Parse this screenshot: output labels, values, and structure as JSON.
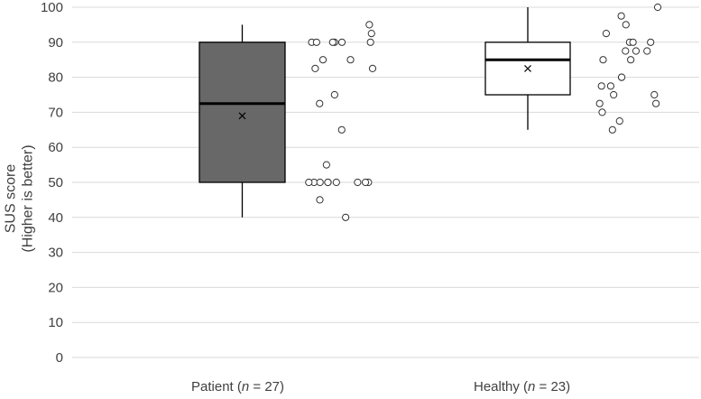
{
  "chart_data": {
    "type": "box",
    "ylabel": [
      "SUS score",
      "(Higher is better)"
    ],
    "ylim": [
      0,
      100
    ],
    "yticks": [
      0,
      10,
      20,
      30,
      40,
      50,
      60,
      70,
      80,
      90,
      100
    ],
    "grid": true,
    "groups": [
      {
        "name": "Patient",
        "n": 27,
        "label_prefix": "Patient (",
        "label_n": "n",
        "label_suffix": " = 27)",
        "fill": "#686868",
        "median_color": "#000000",
        "box": {
          "q1": 50,
          "median": 72.5,
          "q3": 90,
          "whisker_low": 40,
          "whisker_high": 95,
          "mean": 69
        },
        "points": [
          95,
          92.5,
          90,
          90,
          90,
          90,
          90,
          90,
          85,
          85,
          82.5,
          82.5,
          75,
          72.5,
          65,
          55,
          50,
          50,
          50,
          50,
          50,
          50,
          50,
          50,
          50,
          45,
          40
        ]
      },
      {
        "name": "Healthy",
        "n": 23,
        "label_prefix": "Healthy (",
        "label_n": "n",
        "label_suffix": " = 23)",
        "fill": "#ffffff",
        "median_color": "#000000",
        "box": {
          "q1": 75,
          "median": 85,
          "q3": 90,
          "whisker_low": 65,
          "whisker_high": 100,
          "mean": 82.5
        },
        "points": [
          100,
          97.5,
          95,
          92.5,
          90,
          90,
          90,
          87.5,
          87.5,
          87.5,
          85,
          85,
          80,
          80,
          77.5,
          77.5,
          75,
          75,
          72.5,
          72.5,
          70,
          67.5,
          65
        ]
      }
    ]
  }
}
